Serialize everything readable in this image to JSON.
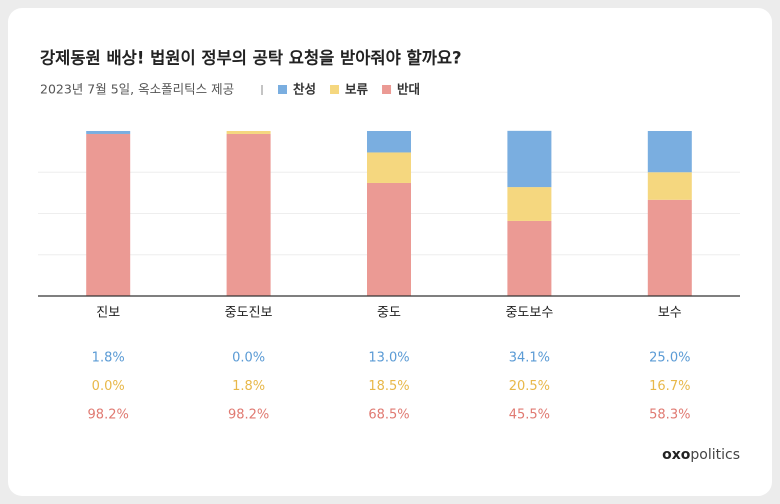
{
  "chart_data": {
    "type": "stacked_bar",
    "title": "강제동원 배상! 법원이 정부의 공탁 요청을 받아줘야 할까요?",
    "subtitle": "2023년 7월 5일, 옥소폴리틱스 제공",
    "categories": [
      "진보",
      "중도진보",
      "중도",
      "중도보수",
      "보수"
    ],
    "series": [
      {
        "name": "찬성",
        "color": "#7aaee0",
        "label_color": "#5b9bd5",
        "values": [
          1.8,
          0.0,
          13.0,
          34.1,
          25.0
        ],
        "value_labels": [
          "1.8%",
          "0.0%",
          "13.0%",
          "34.1%",
          "25.0%"
        ]
      },
      {
        "name": "보류",
        "color": "#f5d77f",
        "label_color": "#e8b84a",
        "values": [
          0.0,
          1.8,
          18.5,
          20.5,
          16.7
        ],
        "value_labels": [
          "0.0%",
          "1.8%",
          "18.5%",
          "20.5%",
          "16.7%"
        ]
      },
      {
        "name": "반대",
        "color": "#eb9a94",
        "label_color": "#e07a72",
        "values": [
          98.2,
          98.2,
          68.5,
          45.5,
          58.3
        ],
        "value_labels": [
          "98.2%",
          "98.2%",
          "68.5%",
          "45.5%",
          "58.3%"
        ]
      }
    ],
    "ylim": [
      0,
      100
    ],
    "yticks": [
      25,
      50,
      75
    ],
    "grid": true,
    "brand_bold": "oxo",
    "brand_rest": "politics"
  }
}
